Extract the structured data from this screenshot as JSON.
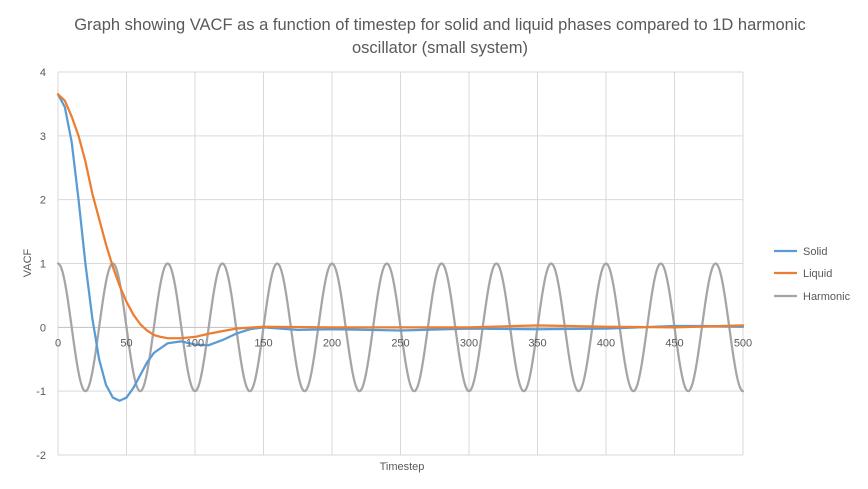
{
  "chart_data": {
    "type": "line",
    "title": "Graph showing VACF as a function of timestep for solid and liquid phases compared to 1D harmonic oscillator (small system)",
    "xlabel": "Timestep",
    "ylabel": "VACF",
    "xlim": [
      0,
      500
    ],
    "ylim": [
      -2,
      4
    ],
    "xticks": [
      0,
      50,
      100,
      150,
      200,
      250,
      300,
      350,
      400,
      450,
      500
    ],
    "yticks": [
      -2,
      -1,
      0,
      1,
      2,
      3,
      4
    ],
    "grid": true,
    "legend_position": "right",
    "colors": {
      "Solid": "#5b9bd5",
      "Liquid": "#ed7d31",
      "Harmonic": "#a5a5a5"
    },
    "series": [
      {
        "name": "Solid",
        "x": [
          0,
          5,
          10,
          15,
          20,
          25,
          30,
          35,
          40,
          45,
          50,
          55,
          60,
          65,
          70,
          80,
          90,
          100,
          110,
          120,
          130,
          140,
          150,
          175,
          200,
          250,
          300,
          350,
          400,
          450,
          470,
          500
        ],
        "values": [
          3.65,
          3.45,
          2.9,
          2.0,
          1.0,
          0.15,
          -0.5,
          -0.9,
          -1.1,
          -1.15,
          -1.1,
          -0.95,
          -0.75,
          -0.55,
          -0.4,
          -0.25,
          -0.22,
          -0.27,
          -0.28,
          -0.2,
          -0.1,
          -0.03,
          0.0,
          -0.04,
          -0.03,
          -0.05,
          -0.02,
          -0.03,
          -0.02,
          0.02,
          0.02,
          0.01
        ]
      },
      {
        "name": "Liquid",
        "x": [
          0,
          5,
          10,
          15,
          20,
          25,
          30,
          35,
          40,
          45,
          50,
          55,
          60,
          65,
          70,
          75,
          80,
          90,
          100,
          110,
          120,
          130,
          150,
          200,
          250,
          300,
          350,
          400,
          450,
          500
        ],
        "values": [
          3.65,
          3.55,
          3.3,
          3.0,
          2.6,
          2.1,
          1.7,
          1.3,
          0.95,
          0.65,
          0.4,
          0.2,
          0.05,
          -0.05,
          -0.12,
          -0.15,
          -0.17,
          -0.17,
          -0.15,
          -0.1,
          -0.06,
          -0.02,
          0.01,
          0.0,
          0.0,
          0.0,
          0.03,
          0.01,
          0.0,
          0.03
        ]
      },
      {
        "name": "Harmonic",
        "function": "cos",
        "amplitude": 1,
        "period": 40,
        "x_start": 0,
        "x_end": 500
      }
    ]
  }
}
